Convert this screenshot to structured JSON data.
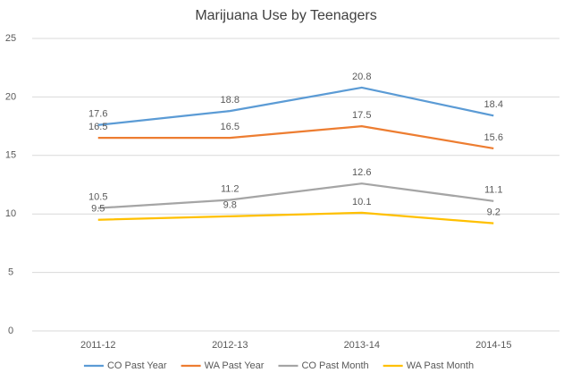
{
  "chart_data": {
    "type": "line",
    "title": "Marijuana Use by Teenagers",
    "categories": [
      "2011-12",
      "2012-13",
      "2013-14",
      "2014-15"
    ],
    "series": [
      {
        "name": "CO Past Year",
        "color": "#5b9bd5",
        "values": [
          17.6,
          18.8,
          20.8,
          18.4
        ]
      },
      {
        "name": "WA Past Year",
        "color": "#ed7d31",
        "values": [
          16.5,
          16.5,
          17.5,
          15.6
        ]
      },
      {
        "name": "CO Past Month",
        "color": "#a5a5a5",
        "values": [
          10.5,
          11.2,
          12.6,
          11.1
        ]
      },
      {
        "name": "WA Past Month",
        "color": "#ffc000",
        "values": [
          9.5,
          9.8,
          10.1,
          9.2
        ]
      }
    ],
    "ylim": [
      0,
      25
    ],
    "yticks": [
      0,
      5,
      10,
      15,
      20,
      25
    ],
    "grid": true,
    "legend": "bottom"
  }
}
